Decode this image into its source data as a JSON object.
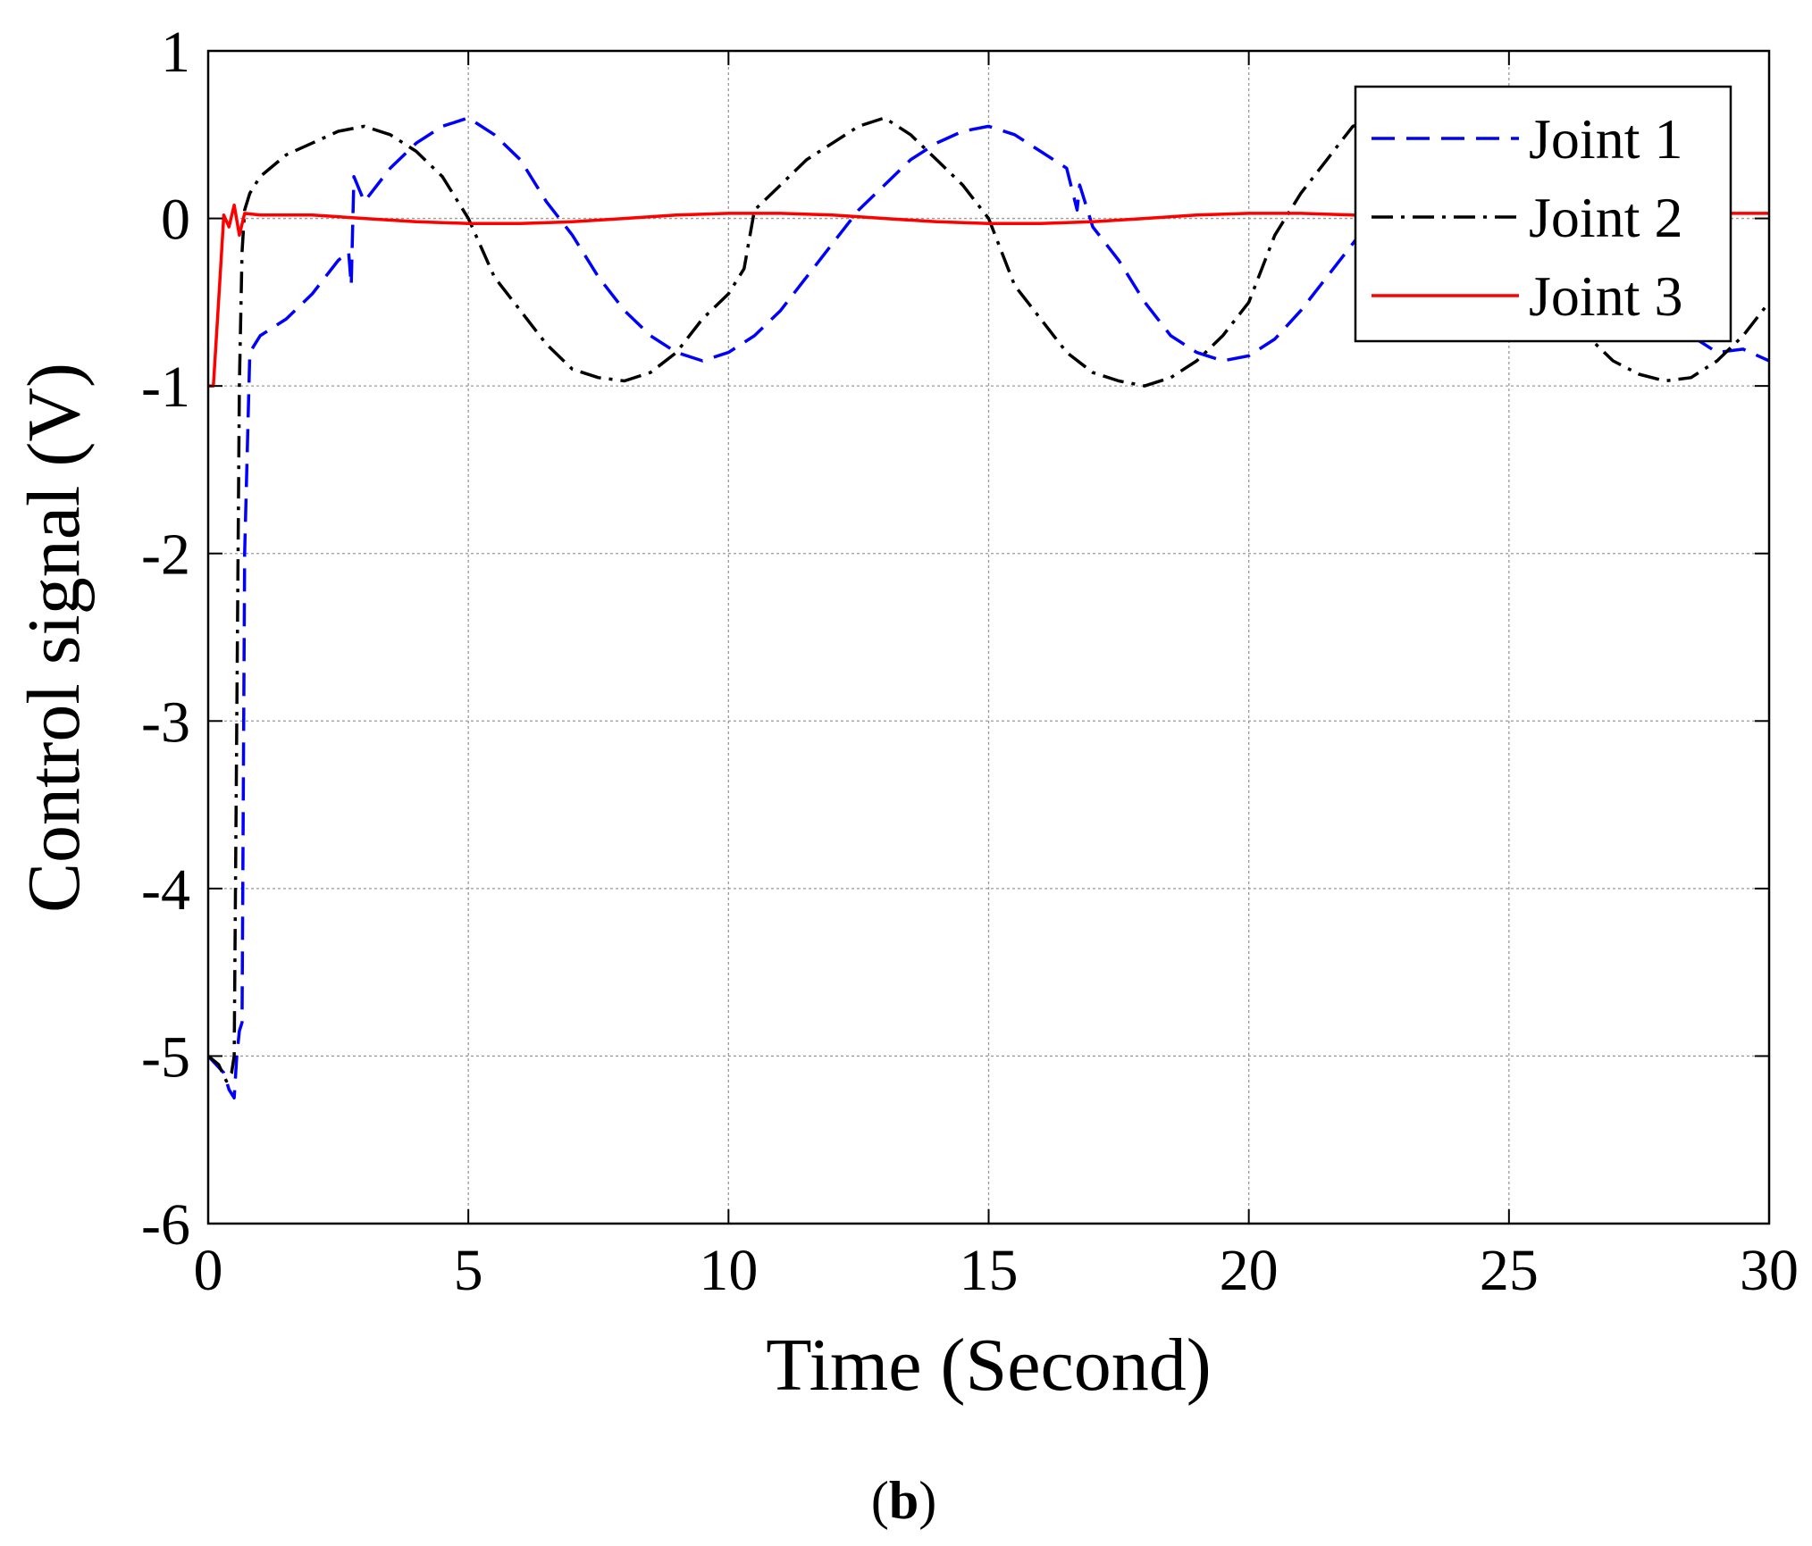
{
  "chart_data": {
    "type": "line",
    "title": "",
    "xlabel": "Time (Second)",
    "ylabel": "Control signal (V)",
    "panel_label": {
      "open": "(",
      "letter": "b",
      "close": ")"
    },
    "xlim": [
      0,
      30
    ],
    "ylim": [
      -6,
      1
    ],
    "xticks": [
      0,
      5,
      10,
      15,
      20,
      25,
      30
    ],
    "yticks": [
      1,
      0,
      -1,
      -2,
      -3,
      -4,
      -5,
      -6
    ],
    "grid": true,
    "legend_position": "top-right",
    "series": [
      {
        "name": "Joint 1",
        "color": "#0000ff",
        "style": "dashed",
        "x": [
          0,
          0.3,
          0.4,
          0.5,
          0.55,
          0.6,
          0.65,
          0.7,
          0.8,
          1.0,
          1.5,
          2.0,
          2.5,
          2.7,
          2.75,
          2.8,
          3.0,
          3.5,
          4.0,
          4.5,
          5.0,
          5.5,
          6.0,
          6.5,
          7.0,
          7.5,
          8.0,
          8.5,
          9.0,
          9.5,
          10.0,
          10.5,
          11.0,
          11.5,
          12.0,
          12.5,
          13.0,
          13.5,
          14.0,
          14.5,
          15.0,
          15.5,
          16.0,
          16.5,
          16.7,
          16.75,
          17.0,
          17.5,
          18.0,
          18.5,
          19.0,
          19.5,
          20.0,
          20.5,
          21.0,
          21.5,
          22.0,
          22.5,
          23.0,
          23.5,
          24.0,
          24.5,
          25.0,
          25.5,
          26.0,
          26.5,
          27.0,
          27.5,
          28.0,
          28.5,
          29.0,
          29.5,
          30.0
        ],
        "y": [
          -5.0,
          -5.1,
          -5.2,
          -5.25,
          -5.0,
          -4.85,
          -4.8,
          -2.0,
          -0.8,
          -0.7,
          -0.6,
          -0.45,
          -0.25,
          -0.2,
          -0.4,
          0.25,
          0.1,
          0.3,
          0.45,
          0.55,
          0.6,
          0.5,
          0.35,
          0.1,
          -0.1,
          -0.35,
          -0.55,
          -0.7,
          -0.8,
          -0.85,
          -0.8,
          -0.7,
          -0.55,
          -0.35,
          -0.15,
          0.05,
          0.2,
          0.35,
          0.45,
          0.52,
          0.55,
          0.5,
          0.4,
          0.3,
          0.05,
          0.2,
          -0.05,
          -0.25,
          -0.5,
          -0.7,
          -0.8,
          -0.85,
          -0.82,
          -0.72,
          -0.55,
          -0.35,
          -0.15,
          0.05,
          0.2,
          0.35,
          0.45,
          0.52,
          0.55,
          0.5,
          0.35,
          0.15,
          -0.1,
          -0.35,
          -0.55,
          -0.7,
          -0.8,
          -0.78,
          -0.85
        ]
      },
      {
        "name": "Joint 2",
        "color": "#000000",
        "style": "dashdot",
        "x": [
          0,
          0.2,
          0.35,
          0.45,
          0.5,
          0.55,
          0.6,
          0.65,
          0.7,
          0.8,
          1.0,
          1.5,
          2.0,
          2.5,
          3.0,
          3.5,
          4.0,
          4.5,
          5.0,
          5.5,
          6.0,
          6.5,
          7.0,
          7.5,
          8.0,
          8.5,
          9.0,
          9.5,
          10.0,
          10.3,
          10.5,
          11.0,
          11.5,
          12.0,
          12.5,
          13.0,
          13.5,
          14.0,
          14.5,
          15.0,
          15.5,
          16.0,
          16.5,
          17.0,
          17.5,
          18.0,
          18.5,
          19.0,
          19.5,
          20.0,
          20.5,
          21.0,
          21.5,
          22.0,
          22.5,
          23.0,
          23.5,
          24.0,
          24.5,
          25.0,
          25.5,
          26.0,
          26.5,
          27.0,
          27.5,
          28.0,
          28.5,
          29.0,
          29.5,
          30.0
        ],
        "y": [
          -5.0,
          -5.05,
          -5.15,
          -5.1,
          -5.0,
          -3.0,
          -1.0,
          -0.2,
          0.05,
          0.15,
          0.25,
          0.38,
          0.45,
          0.52,
          0.55,
          0.5,
          0.4,
          0.25,
          0.0,
          -0.35,
          -0.55,
          -0.75,
          -0.9,
          -0.95,
          -0.97,
          -0.92,
          -0.8,
          -0.6,
          -0.45,
          -0.3,
          0.05,
          0.2,
          0.35,
          0.45,
          0.55,
          0.6,
          0.5,
          0.35,
          0.2,
          0.0,
          -0.4,
          -0.6,
          -0.8,
          -0.92,
          -0.97,
          -1.0,
          -0.95,
          -0.85,
          -0.7,
          -0.5,
          -0.1,
          0.15,
          0.35,
          0.55,
          0.6,
          0.5,
          0.35,
          0.2,
          0.05,
          -0.1,
          -0.3,
          -0.5,
          -0.7,
          -0.85,
          -0.93,
          -0.97,
          -0.95,
          -0.85,
          -0.7,
          -0.5
        ]
      },
      {
        "name": "Joint 3",
        "color": "#ff0000",
        "style": "solid",
        "x": [
          0,
          0.1,
          0.2,
          0.3,
          0.4,
          0.5,
          0.6,
          0.7,
          1.0,
          2.0,
          3.0,
          4.0,
          5.0,
          6.0,
          7.0,
          8.0,
          9.0,
          10.0,
          11.0,
          12.0,
          13.0,
          14.0,
          15.0,
          16.0,
          17.0,
          18.0,
          19.0,
          20.0,
          21.0,
          22.0,
          23.0,
          24.0,
          25.0,
          26.0,
          27.0,
          28.0,
          29.0,
          30.0
        ],
        "y": [
          -1.0,
          -1.0,
          -0.5,
          0.02,
          -0.05,
          0.08,
          -0.1,
          0.03,
          0.02,
          0.02,
          0.0,
          -0.02,
          -0.03,
          -0.03,
          -0.02,
          0.0,
          0.02,
          0.03,
          0.03,
          0.02,
          0.0,
          -0.02,
          -0.03,
          -0.03,
          -0.02,
          0.0,
          0.02,
          0.03,
          0.03,
          0.02,
          0.0,
          -0.02,
          -0.03,
          -0.02,
          0.0,
          0.02,
          0.03,
          0.03
        ]
      }
    ]
  }
}
